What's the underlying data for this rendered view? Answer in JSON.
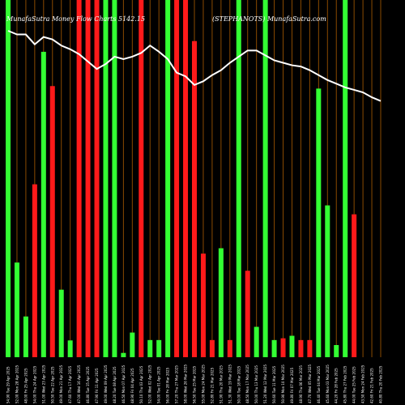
{
  "header": {
    "left": "MunafaSutra  Money Flow  Charts 5142.15",
    "right": "(STEPHANOTS) MunafaSutra.com"
  },
  "colors": {
    "background": "#000000",
    "inflow": "#33ff33",
    "outflow": "#ff1a1a",
    "gridline": "#8a4a00",
    "price_line": "#ffffff"
  },
  "chart_data": {
    "type": "bar",
    "title": "MunafaSutra  Money Flow  Charts 5142.15",
    "subtitle": "(STEPHANOTS) MunafaSutra.com",
    "categories": [
      "54.90 Tue 29 Apr 2025",
      "52.00 Mon 28 Apr 2025",
      "48.00 Fri 25 Apr 2025",
      "54.00 Thu 24 Apr 2025",
      "51.00 Wed 23 Apr 2025",
      "50.50 Tue 22 Apr 2025",
      "49.00 Mon 21 Apr 2025",
      "47.60 Thu 17 Apr 2025",
      "47.00 Wed 16 Apr 2025",
      "46.80 Tue 15 Apr 2025",
      "47.90 Fri 11 Apr 2025",
      "49.00 Wed 09 Apr 2025",
      "48.20 Tue 08 Apr 2025",
      "46.50 Mon 07 Apr 2025",
      "48.90 Fri 04 Apr 2025",
      "50.10 Thu 03 Apr 2025",
      "52.00 Wed 02 Apr 2025",
      "54.00 Tue 01 Apr 2025",
      "56.00 Fri 28 Mar 2025",
      "57.20 Thu 27 Mar 2025",
      "58.00 Wed 26 Mar 2025",
      "56.50 Tue 25 Mar 2025",
      "55.00 Mon 24 Mar 2025",
      "52.80 Fri 21 Mar 2025",
      "51.90 Thu 20 Mar 2025",
      "51.30 Wed 19 Mar 2025",
      "50.00 Tue 18 Mar 2025",
      "48.50 Mon 17 Mar 2025",
      "50.00 Thu 13 Mar 2025",
      "51.20 Wed 12 Mar 2025",
      "50.60 Tue 11 Mar 2025",
      "50.90 Mon 10 Mar 2025",
      "49.80 Fri 07 Mar 2025",
      "48.90 Thu 06 Mar 2025",
      "47.70 Wed 05 Mar 2025",
      "46.40 Tue 04 Mar 2025",
      "45.60 Mon 03 Mar 2025",
      "44.20 Fri 28 Feb 2025",
      "45.80 Thu 27 Feb 2025",
      "44.00 Tue 25 Feb 2025",
      "43.50 Mon 24 Feb 2025",
      "42.60 Fri 21 Feb 2025",
      "40.80 Thu 20 Feb 2025"
    ],
    "flow_direction": [
      "in",
      "in",
      "in",
      "out",
      "in",
      "out",
      "in",
      "in",
      "out",
      "out",
      "out",
      "in",
      "in",
      "in",
      "in",
      "out",
      "in",
      "in",
      "in",
      "out",
      "out",
      "out",
      "out",
      "out",
      "in",
      "out",
      "in",
      "out",
      "in",
      "in",
      "in",
      "out",
      "in",
      "out",
      "out",
      "in",
      "in",
      "in",
      "in",
      "out",
      "in",
      "in",
      "out"
    ],
    "flow_bar_height_pct": [
      100,
      26.5,
      11.4,
      48.4,
      85.5,
      75.9,
      18.9,
      4.7,
      100,
      100,
      100,
      100,
      100,
      1.2,
      6.9,
      100,
      4.8,
      4.8,
      100,
      100,
      100,
      88.5,
      29.0,
      4.8,
      30.5,
      4.8,
      100,
      24.2,
      8.5,
      100,
      4.8,
      5.3,
      6.0,
      4.8,
      4.8,
      75.2,
      42.5,
      3.4,
      100,
      40.0,
      0,
      0,
      0
    ],
    "price_line": [
      100,
      97,
      97,
      89,
      95,
      93,
      88,
      85,
      81,
      75,
      69,
      73,
      79,
      77,
      79,
      82,
      88,
      83,
      77,
      66,
      63,
      56,
      59,
      64,
      68,
      74,
      79,
      84,
      84,
      80,
      76,
      74,
      72,
      71,
      68,
      64,
      60,
      57,
      54,
      52,
      50,
      46,
      43
    ],
    "ylim": [
      0,
      100
    ],
    "grid": true,
    "xlabel": "",
    "ylabel": ""
  }
}
